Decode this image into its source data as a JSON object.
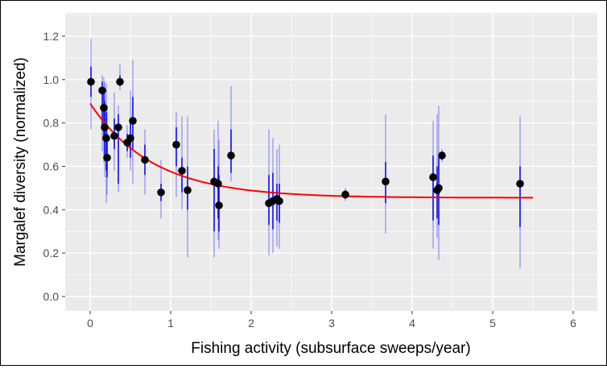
{
  "chart_data": {
    "type": "scatter",
    "xlabel": "Fishing activity (subsurface sweeps/year)",
    "ylabel": "Margalef diversity (normalized)",
    "xlim": [
      -0.3,
      6.3
    ],
    "ylim": [
      -0.07,
      1.27
    ],
    "xticks": [
      0,
      1,
      2,
      3,
      4,
      5,
      6
    ],
    "yticks": [
      0.0,
      0.2,
      0.4,
      0.6,
      0.8,
      1.0,
      1.2
    ],
    "ytick_labels": [
      "0.0",
      "0.2",
      "0.4",
      "0.6",
      "0.8",
      "1.0",
      "1.2"
    ],
    "grid": true,
    "colors": {
      "points": "#000000",
      "errorbars": "#0000ff",
      "fit": "#ff0000",
      "panel": "#ebebeb"
    },
    "points": [
      {
        "x": 0.01,
        "y": 0.99,
        "lo": 0.77,
        "hi": 1.19,
        "ilo": 0.92,
        "ihi": 1.06
      },
      {
        "x": 0.15,
        "y": 0.95,
        "lo": 0.67,
        "hi": 1.02,
        "ilo": 0.78,
        "ihi": 0.99
      },
      {
        "x": 0.17,
        "y": 0.87,
        "lo": 0.62,
        "hi": 1.01,
        "ilo": 0.72,
        "ihi": 0.95
      },
      {
        "x": 0.18,
        "y": 0.78,
        "lo": 0.55,
        "hi": 0.99,
        "ilo": 0.64,
        "ihi": 0.9
      },
      {
        "x": 0.2,
        "y": 0.73,
        "lo": 0.43,
        "hi": 0.98,
        "ilo": 0.58,
        "ihi": 0.85
      },
      {
        "x": 0.21,
        "y": 0.64,
        "lo": 0.47,
        "hi": 0.86,
        "ilo": 0.55,
        "ihi": 0.75
      },
      {
        "x": 0.3,
        "y": 0.74,
        "lo": 0.58,
        "hi": 0.94,
        "ilo": 0.68,
        "ihi": 0.82
      },
      {
        "x": 0.37,
        "y": 0.99,
        "lo": 0.95,
        "hi": 1.07,
        "ilo": 0.97,
        "ihi": 1.02
      },
      {
        "x": 0.35,
        "y": 0.78,
        "lo": 0.48,
        "hi": 0.88,
        "ilo": 0.52,
        "ihi": 0.84
      },
      {
        "x": 0.46,
        "y": 0.71,
        "lo": 0.64,
        "hi": 0.79,
        "ilo": 0.67,
        "ihi": 0.75
      },
      {
        "x": 0.5,
        "y": 0.73,
        "lo": 0.58,
        "hi": 0.95,
        "ilo": 0.64,
        "ihi": 0.8
      },
      {
        "x": 0.53,
        "y": 0.81,
        "lo": 0.52,
        "hi": 1.09,
        "ilo": 0.68,
        "ihi": 0.92
      },
      {
        "x": 0.68,
        "y": 0.63,
        "lo": 0.47,
        "hi": 0.77,
        "ilo": 0.56,
        "ihi": 0.7
      },
      {
        "x": 0.88,
        "y": 0.48,
        "lo": 0.36,
        "hi": 0.63,
        "ilo": 0.44,
        "ihi": 0.52
      },
      {
        "x": 1.07,
        "y": 0.7,
        "lo": 0.46,
        "hi": 0.85,
        "ilo": 0.6,
        "ihi": 0.78
      },
      {
        "x": 1.14,
        "y": 0.58,
        "lo": 0.4,
        "hi": 0.83,
        "ilo": 0.48,
        "ihi": 0.64
      },
      {
        "x": 1.21,
        "y": 0.49,
        "lo": 0.18,
        "hi": 0.83,
        "ilo": 0.4,
        "ihi": 0.6
      },
      {
        "x": 1.54,
        "y": 0.53,
        "lo": 0.18,
        "hi": 0.77,
        "ilo": 0.3,
        "ihi": 0.68
      },
      {
        "x": 1.59,
        "y": 0.52,
        "lo": 0.26,
        "hi": 0.81,
        "ilo": 0.36,
        "ihi": 0.6
      },
      {
        "x": 1.6,
        "y": 0.42,
        "lo": 0.22,
        "hi": 0.72,
        "ilo": 0.3,
        "ihi": 0.56
      },
      {
        "x": 1.75,
        "y": 0.65,
        "lo": 0.53,
        "hi": 0.97,
        "ilo": 0.57,
        "ihi": 0.77
      },
      {
        "x": 2.22,
        "y": 0.43,
        "lo": 0.19,
        "hi": 0.77,
        "ilo": 0.33,
        "ihi": 0.56
      },
      {
        "x": 2.27,
        "y": 0.44,
        "lo": 0.2,
        "hi": 0.73,
        "ilo": 0.31,
        "ihi": 0.57
      },
      {
        "x": 2.32,
        "y": 0.45,
        "lo": 0.23,
        "hi": 0.68,
        "ilo": 0.35,
        "ihi": 0.52
      },
      {
        "x": 2.35,
        "y": 0.44,
        "lo": 0.22,
        "hi": 0.7,
        "ilo": 0.34,
        "ihi": 0.52
      },
      {
        "x": 3.17,
        "y": 0.47,
        "lo": 0.44,
        "hi": 0.5,
        "ilo": 0.45,
        "ihi": 0.49
      },
      {
        "x": 3.67,
        "y": 0.53,
        "lo": 0.29,
        "hi": 0.84,
        "ilo": 0.43,
        "ihi": 0.62
      },
      {
        "x": 4.26,
        "y": 0.55,
        "lo": 0.22,
        "hi": 0.81,
        "ilo": 0.35,
        "ihi": 0.65
      },
      {
        "x": 4.31,
        "y": 0.49,
        "lo": 0.27,
        "hi": 0.84,
        "ilo": 0.36,
        "ihi": 0.6
      },
      {
        "x": 4.33,
        "y": 0.5,
        "lo": 0.17,
        "hi": 0.88,
        "ilo": 0.33,
        "ihi": 0.64
      },
      {
        "x": 4.37,
        "y": 0.65,
        "lo": 0.62,
        "hi": 0.68,
        "ilo": 0.63,
        "ihi": 0.67
      },
      {
        "x": 5.34,
        "y": 0.52,
        "lo": 0.13,
        "hi": 0.83,
        "ilo": 0.32,
        "ihi": 0.6
      }
    ],
    "fit": {
      "type": "exponential decay",
      "asymptote": 0.455,
      "amplitude": 0.435,
      "rate": 1.28,
      "xrange": [
        0,
        5.5
      ]
    }
  }
}
